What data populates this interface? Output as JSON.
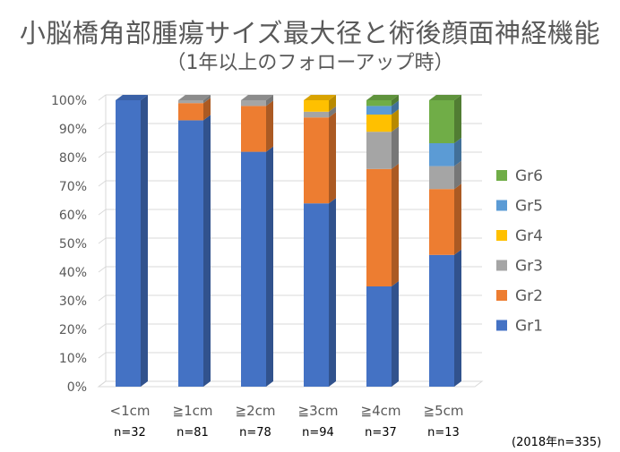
{
  "title": "小脳橋角部腫瘍サイズ最大径と術後顔面神経機能",
  "subtitle": "（1年以上のフォローアップ時）",
  "footnote": "(2018年n=335)",
  "chart_data": {
    "type": "bar",
    "stacked": true,
    "three_d": true,
    "categories": [
      "<1cm",
      "≧1cm",
      "≧2cm",
      "≧3cm",
      "≧4cm",
      "≧5cm"
    ],
    "category_counts": [
      "n=32",
      "n=81",
      "n=78",
      "n=94",
      "n=37",
      "n=13"
    ],
    "ylim": [
      0,
      100
    ],
    "yticks": [
      "0%",
      "10%",
      "20%",
      "30%",
      "40%",
      "50%",
      "60%",
      "70%",
      "80%",
      "90%",
      "100%"
    ],
    "grid": true,
    "legend_position": "right",
    "series": [
      {
        "name": "Gr1",
        "color": "#4472C4",
        "values": [
          100,
          93,
          82,
          64,
          35,
          46
        ]
      },
      {
        "name": "Gr2",
        "color": "#ED7D31",
        "values": [
          0,
          6,
          16,
          30,
          41,
          23
        ]
      },
      {
        "name": "Gr3",
        "color": "#A5A5A5",
        "values": [
          0,
          1,
          2,
          2,
          13,
          8
        ]
      },
      {
        "name": "Gr4",
        "color": "#FFC000",
        "values": [
          0,
          0,
          0,
          4,
          6,
          0
        ]
      },
      {
        "name": "Gr5",
        "color": "#5B9BD5",
        "values": [
          0,
          0,
          0,
          0,
          3,
          8
        ]
      },
      {
        "name": "Gr6",
        "color": "#70AD47",
        "values": [
          0,
          0,
          0,
          0,
          2,
          15
        ]
      }
    ]
  }
}
